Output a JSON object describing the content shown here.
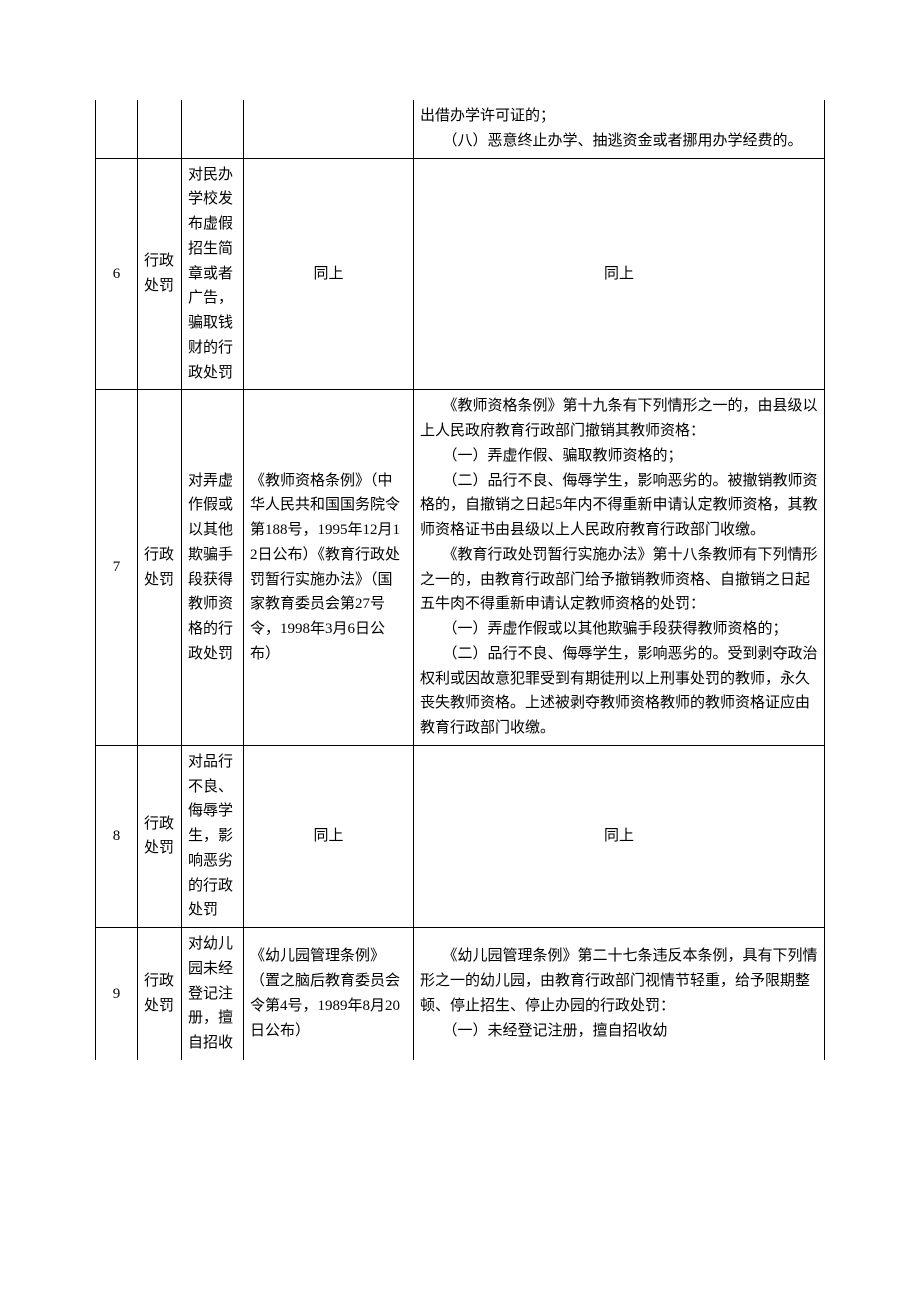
{
  "table": {
    "font_size": 15,
    "line_height": 1.65,
    "border_color": "#000000",
    "text_color": "#000000",
    "background_color": "#ffffff",
    "columns": {
      "num_width": 42,
      "type_width": 44,
      "title_width": 62,
      "basis_width": 170
    },
    "rows": [
      {
        "num": "",
        "type": "",
        "title": "",
        "basis": "",
        "detail_lines": [
          "出借办学许可证的；",
          "　　（八）恶意终止办学、抽逃资金或者挪用办学经费的。"
        ]
      },
      {
        "num": "6",
        "type": "行政处罚",
        "title": "对民办学校发布虚假招生简章或者广告，骗取钱财的行政处罚",
        "basis": "同上",
        "detail": "同上"
      },
      {
        "num": "7",
        "type": "行政处罚",
        "title": "对弄虚作假或以其他欺骗手段获得教师资格的行政处罚",
        "basis": "《教师资格条例》（中华人民共和国国务院令第188号，1995年12月12日公布）《教育行政处罚暂行实施办法》（国家教育委员会第27号令，1998年3月6日公布）",
        "detail_lines": [
          "　　《教师资格条例》第十九条有下列情形之一的，由县级以上人民政府教育行政部门撤销其教师资格：",
          "　　（一）弄虚作假、骗取教师资格的；",
          "　　（二）品行不良、侮辱学生，影响恶劣的。被撤销教师资格的，自撤销之日起5年内不得重新申请认定教师资格，其教师资格证书由县级以上人民政府教育行政部门收缴。",
          "　　《教育行政处罚暂行实施办法》第十八条教师有下列情形之一的，由教育行政部门给予撤销教师资格、自撤销之日起五牛肉不得重新申请认定教师资格的处罚：",
          "　　（一）弄虚作假或以其他欺骗手段获得教师资格的；",
          "　　（二）品行不良、侮辱学生，影响恶劣的。受到剥夺政治权利或因故意犯罪受到有期徒刑以上刑事处罚的教师，永久丧失教师资格。上述被剥夺教师资格教师的教师资格证应由教育行政部门收缴。"
        ]
      },
      {
        "num": "8",
        "type": "行政处罚",
        "title": "对品行不良、侮辱学生，影响恶劣的行政处罚",
        "basis": "同上",
        "detail": "同上"
      },
      {
        "num": "9",
        "type": "行政处罚",
        "title": "对幼儿园未经登记注册，擅自招收",
        "basis": "《幼儿园管理条例》（置之脑后教育委员会令第4号，1989年8月20日公布）",
        "detail_lines": [
          "　　《幼儿园管理条例》第二十七条违反本条例，具有下列情形之一的幼儿园，由教育行政部门视情节轻重，给予限期整顿、停止招生、停止办园的行政处罚：",
          "　　（一）未经登记注册，擅自招收幼"
        ]
      }
    ]
  }
}
